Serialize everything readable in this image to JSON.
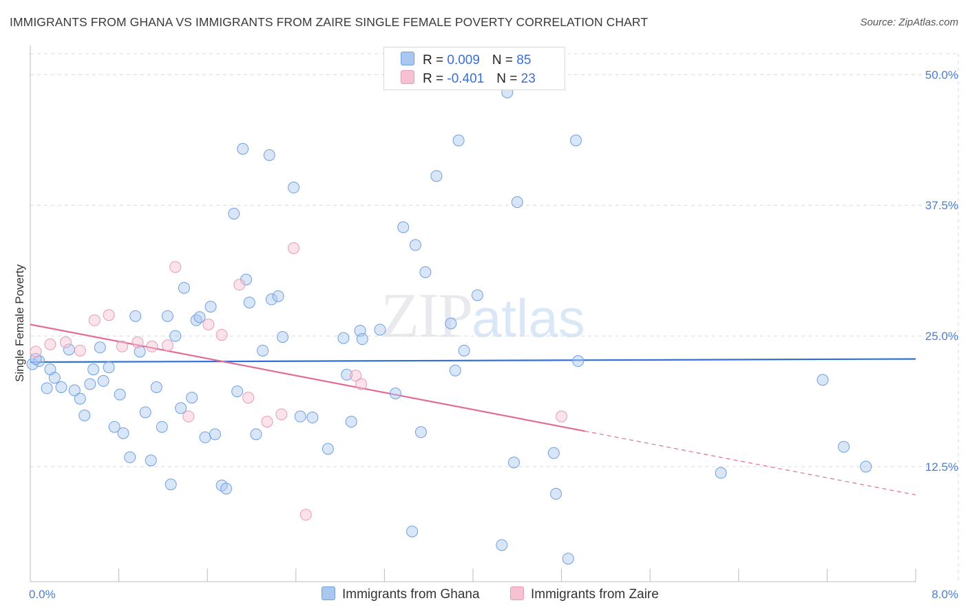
{
  "header": {
    "title": "IMMIGRANTS FROM GHANA VS IMMIGRANTS FROM ZAIRE SINGLE FEMALE POVERTY CORRELATION CHART",
    "source": "Source: ZipAtlas.com"
  },
  "watermark": {
    "zip": "ZIP",
    "atlas": "atlas"
  },
  "legend": {
    "series": [
      {
        "r_label": "R = ",
        "r_value": "0.009",
        "n_label": "N = ",
        "n_value": "85",
        "color": "#a9c8f0",
        "stroke": "#6f9fe0"
      },
      {
        "r_label": "R = ",
        "r_value": "-0.401",
        "n_label": "N = ",
        "n_value": "23",
        "color": "#f6c2d2",
        "stroke": "#e89ab2"
      }
    ]
  },
  "bottom_legend": {
    "ghana": "Immigrants from Ghana",
    "zaire": "Immigrants from Zaire"
  },
  "chart_data": {
    "type": "scatter",
    "title": "IMMIGRANTS FROM GHANA VS IMMIGRANTS FROM ZAIRE SINGLE FEMALE POVERTY CORRELATION CHART",
    "ylabel": "Single Female Poverty",
    "xlabel": "",
    "xlim": [
      0,
      8
    ],
    "ylim": [
      1.5,
      52
    ],
    "x_tick_labels": {
      "left": "0.0%",
      "right": "8.0%"
    },
    "y_ticks": [
      12.5,
      25.0,
      37.5,
      50.0
    ],
    "y_tick_labels": [
      "12.5%",
      "25.0%",
      "37.5%",
      "50.0%"
    ],
    "grid": true,
    "series": [
      {
        "name": "Immigrants from Ghana",
        "color": "#a9c8f0",
        "stroke": "#6f9fe0",
        "trend": {
          "x0": 0,
          "y0": 22.5,
          "x1": 8,
          "y1": 22.8,
          "color": "#2f6fd6"
        },
        "points": [
          [
            0.02,
            22.3
          ],
          [
            0.08,
            22.6
          ],
          [
            0.15,
            20.0
          ],
          [
            0.18,
            21.8
          ],
          [
            0.22,
            21.0
          ],
          [
            0.28,
            20.1
          ],
          [
            0.35,
            23.7
          ],
          [
            0.4,
            19.8
          ],
          [
            0.45,
            19.0
          ],
          [
            0.49,
            17.4
          ],
          [
            0.54,
            20.4
          ],
          [
            0.57,
            21.8
          ],
          [
            0.63,
            23.9
          ],
          [
            0.66,
            20.7
          ],
          [
            0.71,
            22.0
          ],
          [
            0.76,
            16.3
          ],
          [
            0.81,
            19.4
          ],
          [
            0.84,
            15.7
          ],
          [
            0.9,
            13.4
          ],
          [
            0.95,
            26.9
          ],
          [
            0.99,
            23.5
          ],
          [
            1.04,
            17.7
          ],
          [
            1.09,
            13.1
          ],
          [
            1.14,
            20.1
          ],
          [
            1.19,
            16.3
          ],
          [
            1.24,
            26.9
          ],
          [
            1.27,
            10.8
          ],
          [
            1.31,
            25.0
          ],
          [
            1.36,
            18.1
          ],
          [
            1.39,
            29.6
          ],
          [
            1.46,
            19.1
          ],
          [
            1.5,
            26.5
          ],
          [
            1.53,
            26.8
          ],
          [
            1.58,
            15.3
          ],
          [
            1.63,
            27.8
          ],
          [
            1.67,
            15.6
          ],
          [
            1.73,
            10.7
          ],
          [
            1.77,
            10.4
          ],
          [
            1.84,
            36.7
          ],
          [
            1.87,
            19.7
          ],
          [
            1.92,
            42.9
          ],
          [
            1.95,
            30.4
          ],
          [
            1.98,
            28.2
          ],
          [
            2.04,
            15.6
          ],
          [
            2.1,
            23.6
          ],
          [
            2.16,
            42.3
          ],
          [
            2.18,
            28.5
          ],
          [
            2.24,
            28.8
          ],
          [
            2.28,
            24.9
          ],
          [
            2.38,
            39.2
          ],
          [
            2.44,
            17.3
          ],
          [
            2.55,
            17.2
          ],
          [
            2.69,
            14.2
          ],
          [
            2.83,
            24.8
          ],
          [
            2.86,
            21.3
          ],
          [
            2.9,
            16.8
          ],
          [
            2.98,
            25.5
          ],
          [
            3.0,
            24.7
          ],
          [
            3.16,
            25.6
          ],
          [
            3.3,
            19.5
          ],
          [
            3.37,
            35.4
          ],
          [
            3.45,
            6.3
          ],
          [
            3.48,
            33.7
          ],
          [
            3.53,
            15.8
          ],
          [
            3.57,
            31.1
          ],
          [
            3.67,
            40.3
          ],
          [
            3.8,
            26.2
          ],
          [
            3.84,
            21.7
          ],
          [
            3.87,
            43.7
          ],
          [
            3.92,
            23.6
          ],
          [
            4.04,
            28.9
          ],
          [
            4.26,
            5.0
          ],
          [
            4.31,
            48.3
          ],
          [
            4.37,
            12.9
          ],
          [
            4.4,
            37.8
          ],
          [
            4.73,
            13.8
          ],
          [
            4.75,
            9.9
          ],
          [
            4.86,
            3.7
          ],
          [
            4.93,
            43.7
          ],
          [
            4.95,
            22.6
          ],
          [
            6.24,
            11.9
          ],
          [
            7.16,
            20.8
          ],
          [
            7.35,
            14.4
          ],
          [
            7.55,
            12.5
          ],
          [
            0.05,
            22.8
          ]
        ]
      },
      {
        "name": "Immigrants from Zaire",
        "color": "#f6c2d2",
        "stroke": "#e89ab2",
        "trend": {
          "x0": 0,
          "y0": 26.1,
          "x1": 5.01,
          "y1": 15.9,
          "color": "#e36b97",
          "dash_x0": 5.01,
          "dash_y0": 15.9,
          "dash_x1": 8,
          "dash_y1": 9.8
        },
        "points": [
          [
            0.05,
            23.5
          ],
          [
            0.18,
            24.2
          ],
          [
            0.32,
            24.4
          ],
          [
            0.45,
            23.6
          ],
          [
            0.58,
            26.5
          ],
          [
            0.71,
            27.0
          ],
          [
            0.83,
            24.0
          ],
          [
            0.97,
            24.4
          ],
          [
            1.1,
            24.0
          ],
          [
            1.24,
            24.1
          ],
          [
            1.31,
            31.6
          ],
          [
            1.43,
            17.3
          ],
          [
            1.61,
            26.1
          ],
          [
            1.73,
            25.1
          ],
          [
            1.89,
            29.9
          ],
          [
            1.97,
            19.1
          ],
          [
            2.14,
            16.8
          ],
          [
            2.27,
            17.5
          ],
          [
            2.38,
            33.4
          ],
          [
            2.49,
            7.9
          ],
          [
            2.94,
            21.2
          ],
          [
            2.99,
            20.4
          ],
          [
            4.8,
            17.3
          ]
        ]
      }
    ]
  }
}
